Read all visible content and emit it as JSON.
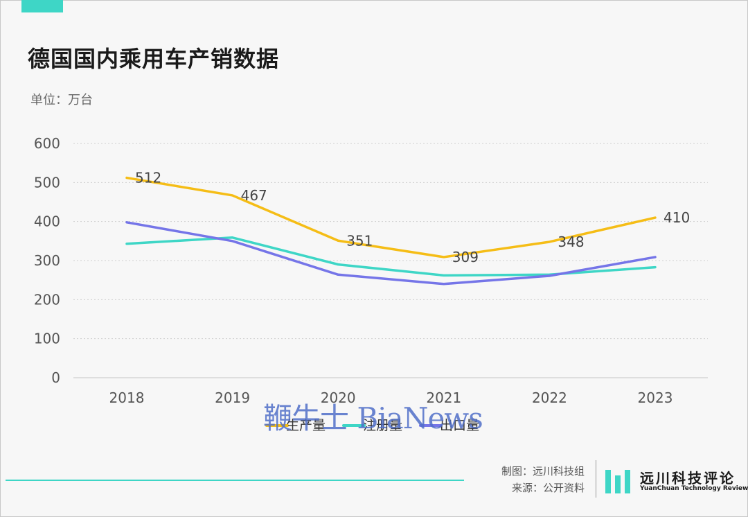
{
  "title": "德国国内乘用车产销数据",
  "unit": "单位：万台",
  "watermark": "鞭牛士 BiaNews",
  "credits": {
    "author": "制图：远川科技组",
    "source": "来源：公开资料"
  },
  "logo": {
    "name": "远川科技评论",
    "subtitle": "YuanChuan Technology Review"
  },
  "colors": {
    "accent": "#3ed6c6"
  },
  "chart_data": {
    "type": "line",
    "categories": [
      "2018",
      "2019",
      "2020",
      "2021",
      "2022",
      "2023"
    ],
    "ylim": [
      0,
      600
    ],
    "yticks": [
      0,
      100,
      200,
      300,
      400,
      500,
      600
    ],
    "grid": true,
    "legend_position": "bottom",
    "series": [
      {
        "name": "生产量",
        "color": "#f5bd16",
        "values": [
          512,
          467,
          351,
          309,
          348,
          410
        ],
        "labels": true
      },
      {
        "name": "注册量",
        "color": "#3ed6c6",
        "values": [
          343,
          359,
          290,
          262,
          264,
          283
        ],
        "labels": false
      },
      {
        "name": "出口量",
        "color": "#7575e8",
        "values": [
          398,
          350,
          264,
          240,
          261,
          309
        ],
        "labels": false
      }
    ]
  }
}
